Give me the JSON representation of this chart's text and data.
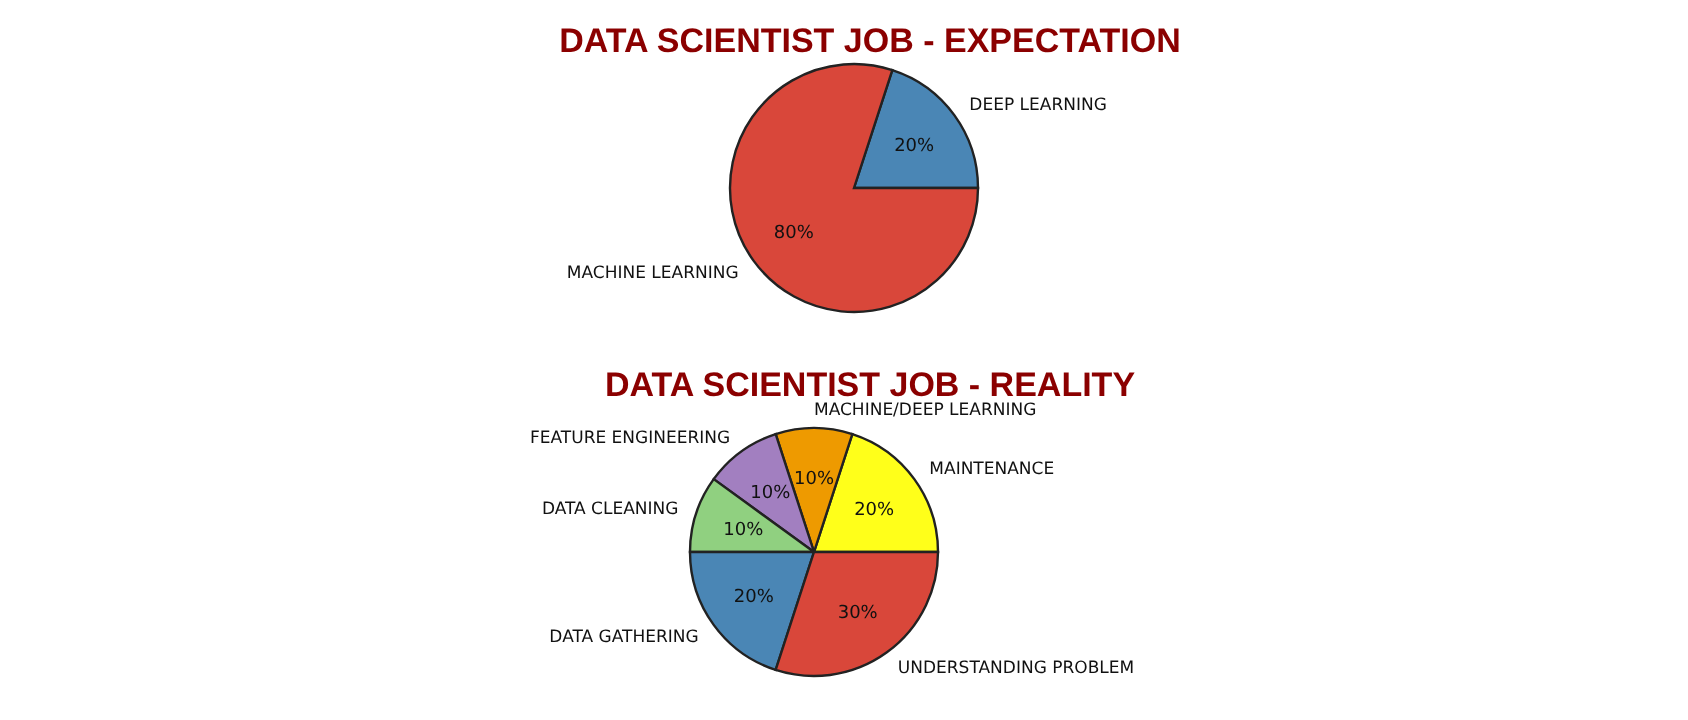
{
  "chart_data": [
    {
      "type": "pie",
      "title": "DATA SCIENTIST JOB - EXPECTATION",
      "categories": [
        "DEEP LEARNING",
        "MACHINE LEARNING"
      ],
      "values": [
        20,
        80
      ],
      "colors": [
        "#4a86b5",
        "#d9473a"
      ],
      "value_labels": [
        "20%",
        "80%"
      ]
    },
    {
      "type": "pie",
      "title": "DATA SCIENTIST JOB - REALITY",
      "categories": [
        "MAINTENANCE",
        "MACHINE/DEEP LEARNING",
        "FEATURE ENGINEERING",
        "DATA CLEANING",
        "DATA GATHERING",
        "UNDERSTANDING PROBLEM"
      ],
      "values": [
        20,
        10,
        10,
        10,
        20,
        30
      ],
      "colors": [
        "#ffff1a",
        "#ee9a00",
        "#a27fc0",
        "#90d080",
        "#4a86b5",
        "#d9473a"
      ],
      "value_labels": [
        "20%",
        "10%",
        "10%",
        "10%",
        "20%",
        "30%"
      ]
    }
  ]
}
